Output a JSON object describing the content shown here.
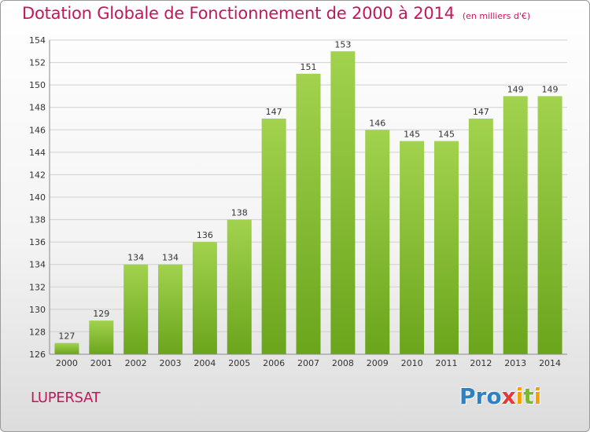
{
  "header": {
    "title": "Dotation Globale de Fonctionnement de 2000 à 2014",
    "unit": "(en milliers d'€)"
  },
  "footer": {
    "commune": "LUPERSAT",
    "logo_text": "Proxiti",
    "logo_letters": [
      {
        "ch": "P",
        "color": "#2b83c4"
      },
      {
        "ch": "r",
        "color": "#2b83c4"
      },
      {
        "ch": "o",
        "color": "#2b83c4"
      },
      {
        "ch": "x",
        "color": "#e53935"
      },
      {
        "ch": "i",
        "color": "#f5a000"
      },
      {
        "ch": "t",
        "color": "#7cb82f"
      },
      {
        "ch": "i",
        "color": "#f5a000"
      }
    ]
  },
  "colors": {
    "title": "#c2185b",
    "bar_light": "#a2d24e",
    "bar_dark": "#6aa51c",
    "grid": "#d0d0d0"
  },
  "chart_data": {
    "type": "bar",
    "title": "Dotation Globale de Fonctionnement de 2000 à 2014",
    "subtitle": "(en milliers d'€)",
    "xlabel": "",
    "ylabel": "",
    "categories": [
      "2000",
      "2001",
      "2002",
      "2003",
      "2004",
      "2005",
      "2006",
      "2007",
      "2008",
      "2009",
      "2010",
      "2011",
      "2012",
      "2013",
      "2014"
    ],
    "values": [
      127,
      129,
      134,
      134,
      136,
      138,
      147,
      151,
      153,
      146,
      145,
      145,
      147,
      149,
      149
    ],
    "ylim": [
      126,
      154
    ],
    "yticks": [
      126,
      128,
      130,
      132,
      134,
      136,
      138,
      140,
      142,
      144,
      146,
      148,
      150,
      152,
      154
    ],
    "grid": true,
    "data_labels": true
  }
}
